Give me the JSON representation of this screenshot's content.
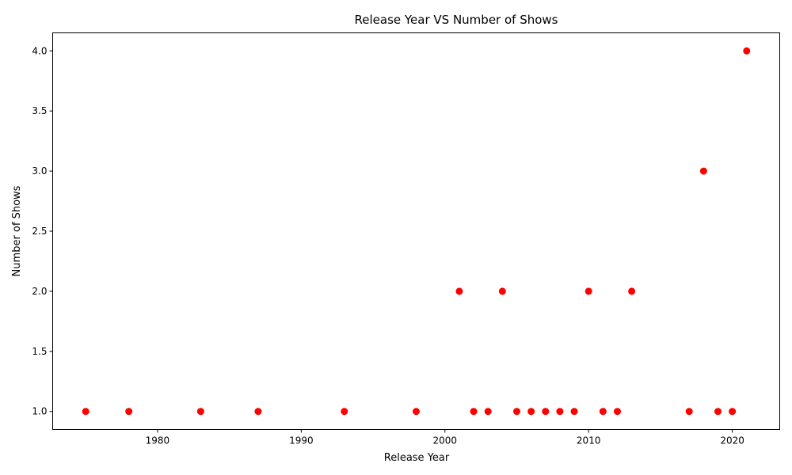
{
  "chart_data": {
    "type": "scatter",
    "title": "Release Year VS Number of Shows",
    "xlabel": "Release Year",
    "ylabel": "Number of Shows",
    "xlim": [
      1972.7,
      2023.3
    ],
    "ylim": [
      0.85,
      4.15
    ],
    "xticks": [
      1980,
      1990,
      2000,
      2010,
      2020
    ],
    "yticks": [
      1.0,
      1.5,
      2.0,
      2.5,
      3.0,
      3.5,
      4.0
    ],
    "xtick_labels": [
      "1980",
      "1990",
      "2000",
      "2010",
      "2020"
    ],
    "ytick_labels": [
      "1.0",
      "1.5",
      "2.0",
      "2.5",
      "3.0",
      "3.5",
      "4.0"
    ],
    "grid": false,
    "legend": false,
    "marker_color": "#ff0000",
    "points": [
      {
        "x": 1975,
        "y": 1
      },
      {
        "x": 1978,
        "y": 1
      },
      {
        "x": 1983,
        "y": 1
      },
      {
        "x": 1987,
        "y": 1
      },
      {
        "x": 1993,
        "y": 1
      },
      {
        "x": 1998,
        "y": 1
      },
      {
        "x": 2001,
        "y": 2
      },
      {
        "x": 2002,
        "y": 1
      },
      {
        "x": 2003,
        "y": 1
      },
      {
        "x": 2004,
        "y": 2
      },
      {
        "x": 2005,
        "y": 1
      },
      {
        "x": 2006,
        "y": 1
      },
      {
        "x": 2007,
        "y": 1
      },
      {
        "x": 2008,
        "y": 1
      },
      {
        "x": 2009,
        "y": 1
      },
      {
        "x": 2010,
        "y": 2
      },
      {
        "x": 2011,
        "y": 1
      },
      {
        "x": 2012,
        "y": 1
      },
      {
        "x": 2013,
        "y": 2
      },
      {
        "x": 2017,
        "y": 1
      },
      {
        "x": 2018,
        "y": 3
      },
      {
        "x": 2019,
        "y": 1
      },
      {
        "x": 2020,
        "y": 1
      },
      {
        "x": 2021,
        "y": 4
      }
    ]
  }
}
